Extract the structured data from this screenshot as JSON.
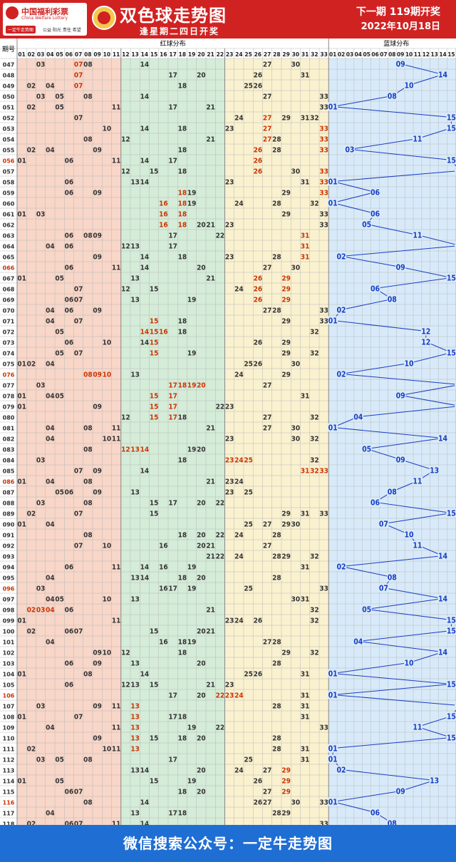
{
  "header": {
    "logo_cn": "中国福利彩票",
    "logo_en": "China Welfare Lottery",
    "logo_tag": "一定牛走势图",
    "logo_slogan": "公益 阳光 责任 希望",
    "title": "双色球走势图",
    "subtitle": "逢星期二四日开奖",
    "next_draw": "下一期 119期开奖",
    "draw_date": "2022年10月18日"
  },
  "footer": {
    "text": "微信搜索公众号：一定牛走势图"
  },
  "colors": {
    "red_zone1": "#f8d6c8",
    "red_zone2": "#d4ecd8",
    "red_zone3": "#faf1cf",
    "blue_zone": "#d8eaf9",
    "number": "#333333",
    "hot": "#cc3300",
    "blue": "#1a3ec4",
    "header_bg": "#d12222",
    "footer_bg": "#1f6ed4"
  },
  "chart_data": {
    "type": "table",
    "headers": {
      "issue": "期号",
      "red_section": "红球分布",
      "blue_section": "蓝球分布"
    },
    "red_numbers": [
      "01",
      "02",
      "03",
      "04",
      "05",
      "06",
      "07",
      "08",
      "09",
      "10",
      "11",
      "12",
      "13",
      "14",
      "15",
      "16",
      "17",
      "18",
      "19",
      "20",
      "21",
      "22",
      "23",
      "24",
      "25",
      "26",
      "27",
      "28",
      "29",
      "30",
      "31",
      "32",
      "33"
    ],
    "blue_numbers": [
      "01",
      "02",
      "03",
      "04",
      "05",
      "06",
      "07",
      "08",
      "09",
      "10",
      "11",
      "12",
      "13",
      "14",
      "15",
      "16"
    ],
    "rows": [
      {
        "issue": "047",
        "red": [
          3,
          7,
          8,
          14,
          27,
          30
        ],
        "blue": 9,
        "hot": [
          7
        ]
      },
      {
        "issue": "048",
        "red": [
          7,
          17,
          20,
          26,
          31
        ],
        "blue": 14,
        "hot": [
          7
        ]
      },
      {
        "issue": "049",
        "red": [
          2,
          4,
          7,
          18,
          25,
          26
        ],
        "blue": 10,
        "hot": [
          7
        ]
      },
      {
        "issue": "050",
        "red": [
          3,
          5,
          8,
          14,
          27,
          33
        ],
        "blue": 8
      },
      {
        "issue": "051",
        "red": [
          2,
          5,
          11,
          17,
          21,
          33
        ],
        "blue": 1
      },
      {
        "issue": "052",
        "red": [
          7,
          24,
          27,
          29,
          31,
          32
        ],
        "blue": 15,
        "hot": [
          27
        ]
      },
      {
        "issue": "053",
        "red": [
          10,
          14,
          18,
          23,
          27,
          33
        ],
        "blue": 15,
        "hot": [
          27,
          33
        ]
      },
      {
        "issue": "054",
        "red": [
          8,
          12,
          21,
          27,
          28,
          33
        ],
        "blue": 11,
        "hot": [
          27,
          33
        ]
      },
      {
        "issue": "055",
        "red": [
          2,
          4,
          9,
          18,
          26,
          28,
          33
        ],
        "blue": 3,
        "hot": [
          26,
          33
        ]
      },
      {
        "issue": "056",
        "red": [
          1,
          6,
          11,
          14,
          17,
          26
        ],
        "blue": 15,
        "hot": [
          26
        ],
        "special": true
      },
      {
        "issue": "057",
        "red": [
          12,
          15,
          18,
          26,
          30,
          33
        ],
        "blue": 16,
        "hot": [
          26,
          33
        ]
      },
      {
        "issue": "058",
        "red": [
          6,
          13,
          14,
          23,
          31,
          33
        ],
        "blue": 1,
        "hot": [
          33
        ]
      },
      {
        "issue": "059",
        "red": [
          6,
          9,
          18,
          19,
          29,
          33
        ],
        "blue": 6,
        "hot": [
          18,
          33
        ]
      },
      {
        "issue": "060",
        "red": [
          16,
          18,
          19,
          24,
          28,
          32
        ],
        "blue": 1,
        "hot": [
          16,
          18
        ]
      },
      {
        "issue": "061",
        "red": [
          1,
          3,
          16,
          18,
          29,
          33
        ],
        "blue": 6,
        "hot": [
          16,
          18
        ]
      },
      {
        "issue": "062",
        "red": [
          16,
          18,
          20,
          21,
          23,
          33
        ],
        "blue": 5,
        "hot": [
          16,
          18
        ]
      },
      {
        "issue": "063",
        "red": [
          6,
          8,
          9,
          17,
          22,
          31
        ],
        "blue": 11,
        "hot": [
          31
        ]
      },
      {
        "issue": "064",
        "red": [
          4,
          6,
          12,
          13,
          17,
          31
        ],
        "blue": 16,
        "hot": [
          31
        ]
      },
      {
        "issue": "065",
        "red": [
          9,
          14,
          18,
          23,
          28,
          31
        ],
        "blue": 2,
        "hot": [
          31
        ]
      },
      {
        "issue": "066",
        "red": [
          6,
          11,
          14,
          20,
          27,
          30
        ],
        "blue": 9,
        "special": true
      },
      {
        "issue": "067",
        "red": [
          1,
          5,
          13,
          21,
          26,
          29
        ],
        "blue": 15,
        "hot": [
          26,
          29
        ]
      },
      {
        "issue": "068",
        "red": [
          7,
          12,
          15,
          24,
          26,
          29
        ],
        "blue": 6,
        "hot": [
          26,
          29
        ]
      },
      {
        "issue": "069",
        "red": [
          6,
          7,
          13,
          19,
          26,
          29
        ],
        "blue": 8,
        "hot": [
          26,
          29
        ]
      },
      {
        "issue": "070",
        "red": [
          4,
          6,
          9,
          27,
          28,
          33
        ],
        "blue": 2
      },
      {
        "issue": "071",
        "red": [
          4,
          7,
          15,
          18,
          29,
          33
        ],
        "blue": 1,
        "hot": [
          15
        ]
      },
      {
        "issue": "072",
        "red": [
          5,
          14,
          15,
          16,
          18,
          32
        ],
        "blue": 12,
        "hot": [
          14,
          15,
          16
        ]
      },
      {
        "issue": "073",
        "red": [
          6,
          10,
          14,
          15,
          26,
          29
        ],
        "blue": 12,
        "hot": [
          15
        ]
      },
      {
        "issue": "074",
        "red": [
          5,
          7,
          15,
          19,
          29,
          32
        ],
        "blue": 15,
        "hot": [
          15
        ]
      },
      {
        "issue": "075",
        "red": [
          1,
          2,
          4,
          25,
          26,
          30
        ],
        "blue": 10
      },
      {
        "issue": "076",
        "red": [
          8,
          9,
          10,
          13,
          24,
          29
        ],
        "blue": 2,
        "hot": [
          8,
          9,
          10
        ],
        "special": true
      },
      {
        "issue": "077",
        "red": [
          3,
          17,
          18,
          19,
          20,
          27
        ],
        "blue": 16,
        "hot": [
          17,
          18,
          19,
          20
        ]
      },
      {
        "issue": "078",
        "red": [
          1,
          4,
          5,
          15,
          17,
          31
        ],
        "blue": 9,
        "hot": [
          15,
          17
        ]
      },
      {
        "issue": "079",
        "red": [
          1,
          9,
          15,
          17,
          22,
          23
        ],
        "blue": 16,
        "hot": [
          15,
          17
        ]
      },
      {
        "issue": "080",
        "red": [
          12,
          15,
          17,
          18,
          27,
          32
        ],
        "blue": 4,
        "hot": [
          15,
          17
        ]
      },
      {
        "issue": "081",
        "red": [
          4,
          8,
          11,
          21,
          27,
          30
        ],
        "blue": 1
      },
      {
        "issue": "082",
        "red": [
          4,
          10,
          11,
          23,
          30,
          32
        ],
        "blue": 14
      },
      {
        "issue": "083",
        "red": [
          8,
          12,
          13,
          14,
          19,
          20
        ],
        "blue": 5,
        "hot": [
          12,
          13,
          14
        ]
      },
      {
        "issue": "084",
        "red": [
          3,
          18,
          23,
          24,
          25,
          32
        ],
        "blue": 9,
        "hot": [
          23,
          24,
          25
        ]
      },
      {
        "issue": "085",
        "red": [
          7,
          9,
          14,
          31,
          32,
          33
        ],
        "blue": 13,
        "hot": [
          31,
          32,
          33
        ]
      },
      {
        "issue": "086",
        "red": [
          1,
          4,
          8,
          21,
          23,
          24
        ],
        "blue": 11,
        "special": true
      },
      {
        "issue": "087",
        "red": [
          5,
          6,
          9,
          13,
          23,
          25
        ],
        "blue": 8
      },
      {
        "issue": "088",
        "red": [
          3,
          8,
          15,
          17,
          20,
          22
        ],
        "blue": 6
      },
      {
        "issue": "089",
        "red": [
          2,
          7,
          15,
          29,
          31,
          33
        ],
        "blue": 15
      },
      {
        "issue": "090",
        "red": [
          1,
          4,
          25,
          27,
          29,
          30
        ],
        "blue": 7
      },
      {
        "issue": "091",
        "red": [
          8,
          18,
          20,
          22,
          24,
          28
        ],
        "blue": 10
      },
      {
        "issue": "092",
        "red": [
          7,
          10,
          16,
          20,
          21,
          27
        ],
        "blue": 11
      },
      {
        "issue": "093",
        "red": [
          21,
          22,
          24,
          28,
          29,
          32
        ],
        "blue": 14
      },
      {
        "issue": "094",
        "red": [
          6,
          11,
          14,
          16,
          19,
          31
        ],
        "blue": 2
      },
      {
        "issue": "095",
        "red": [
          4,
          13,
          14,
          18,
          20,
          28
        ],
        "blue": 8
      },
      {
        "issue": "096",
        "red": [
          3,
          16,
          17,
          19,
          25,
          33
        ],
        "blue": 7,
        "special": true
      },
      {
        "issue": "097",
        "red": [
          4,
          5,
          10,
          13,
          30,
          31
        ],
        "blue": 14
      },
      {
        "issue": "098",
        "red": [
          2,
          3,
          4,
          6,
          21,
          32
        ],
        "blue": 5,
        "hot": [
          2,
          3,
          4
        ]
      },
      {
        "issue": "099",
        "red": [
          1,
          11,
          23,
          24,
          26,
          32
        ],
        "blue": 15
      },
      {
        "issue": "100",
        "red": [
          2,
          6,
          7,
          15,
          20,
          21
        ],
        "blue": 15
      },
      {
        "issue": "101",
        "red": [
          4,
          16,
          18,
          19,
          27,
          28
        ],
        "blue": 4
      },
      {
        "issue": "102",
        "red": [
          9,
          10,
          12,
          18,
          29,
          32
        ],
        "blue": 14
      },
      {
        "issue": "103",
        "red": [
          6,
          9,
          13,
          20,
          28
        ],
        "blue": 10
      },
      {
        "issue": "104",
        "red": [
          1,
          8,
          14,
          25,
          26,
          31
        ],
        "blue": 1
      },
      {
        "issue": "105",
        "red": [
          6,
          12,
          13,
          15,
          21,
          23
        ],
        "blue": 15
      },
      {
        "issue": "106",
        "red": [
          17,
          20,
          22,
          23,
          24,
          31
        ],
        "blue": 1,
        "hot": [
          22,
          23,
          24
        ],
        "special": true
      },
      {
        "issue": "107",
        "red": [
          3,
          9,
          11,
          13,
          28,
          31
        ],
        "blue": 16,
        "hot": [
          13
        ]
      },
      {
        "issue": "108",
        "red": [
          1,
          7,
          13,
          17,
          18,
          31
        ],
        "blue": 15,
        "hot": [
          13
        ]
      },
      {
        "issue": "109",
        "red": [
          4,
          11,
          13,
          19,
          22,
          33
        ],
        "blue": 11,
        "hot": [
          13
        ]
      },
      {
        "issue": "110",
        "red": [
          9,
          13,
          15,
          18,
          20,
          28
        ],
        "blue": 15,
        "hot": [
          13
        ]
      },
      {
        "issue": "111",
        "red": [
          2,
          10,
          11,
          13,
          28,
          31
        ],
        "blue": 1,
        "hot": [
          13
        ]
      },
      {
        "issue": "112",
        "red": [
          3,
          5,
          8,
          17,
          25,
          31
        ],
        "blue": 1
      },
      {
        "issue": "113",
        "red": [
          13,
          14,
          20,
          24,
          27,
          29
        ],
        "blue": 2,
        "hot": [
          29
        ]
      },
      {
        "issue": "114",
        "red": [
          1,
          5,
          15,
          19,
          26,
          29
        ],
        "blue": 13,
        "hot": [
          29
        ]
      },
      {
        "issue": "115",
        "red": [
          6,
          7,
          18,
          20,
          27,
          29
        ],
        "blue": 9,
        "hot": [
          29
        ]
      },
      {
        "issue": "116",
        "red": [
          8,
          14,
          26,
          27,
          30,
          33
        ],
        "blue": 1,
        "special": true
      },
      {
        "issue": "117",
        "red": [
          4,
          13,
          17,
          18,
          28,
          29
        ],
        "blue": 6
      },
      {
        "issue": "118",
        "red": [
          2,
          6,
          7,
          11,
          14,
          33
        ],
        "blue": 8
      }
    ]
  }
}
